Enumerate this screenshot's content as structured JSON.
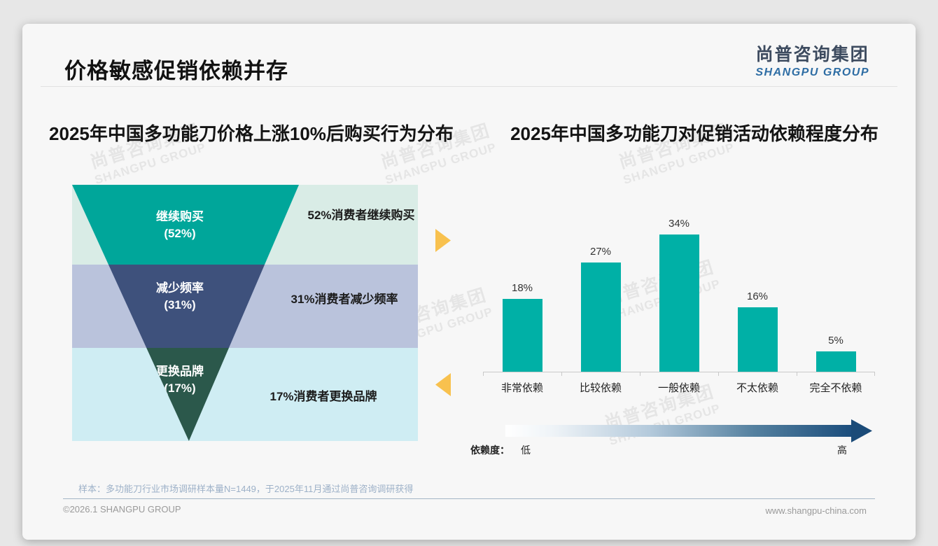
{
  "page": {
    "main_title": "价格敏感促销依赖并存",
    "logo_cn": "尚普咨询集团",
    "logo_en": "SHANGPU GROUP",
    "watermark_cn": "尚普咨询集团",
    "watermark_en": "SHANGPU GROUP",
    "footnote": "样本：多功能刀行业市场调研样本量N=1449，于2025年11月通过尚普咨询调研获得",
    "footer_left": "©2026.1 SHANGPU GROUP",
    "footer_right": "www.shangpu-china.com"
  },
  "colors": {
    "funnel_segment_1": "#00A69A",
    "funnel_segment_2": "#3E517C",
    "funnel_segment_3": "#2B584B",
    "funnel_note_bg_1": "#D9ECE6",
    "funnel_note_bg_2": "#BAC3DC",
    "funnel_note_bg_3": "#CFEDF3",
    "bar_fill": "#00B0A6",
    "side_arrow": "#F8C14E",
    "scale_gradient_start": "#FFFFFF",
    "scale_gradient_end": "#1C4E7D",
    "logo_blue": "#2E6DA4"
  },
  "chart_data": [
    {
      "type": "funnel",
      "title": "2025年中国多功能刀价格上涨10%后购买行为分布",
      "categories": [
        "继续购买",
        "减少频率",
        "更换品牌"
      ],
      "values": [
        52,
        31,
        17
      ],
      "value_labels": [
        "(52%)",
        "(31%)",
        "(17%)"
      ],
      "annotations": [
        "52%消费者继续购买",
        "31%消费者减少频率",
        "17%消费者更换品牌"
      ],
      "legend": false
    },
    {
      "type": "bar",
      "title": "2025年中国多功能刀对促销活动依赖程度分布",
      "categories": [
        "非常依赖",
        "比较依赖",
        "一般依赖",
        "不太依赖",
        "完全不依赖"
      ],
      "values": [
        18,
        27,
        34,
        16,
        5
      ],
      "value_labels": [
        "18%",
        "27%",
        "34%",
        "16%",
        "5%"
      ],
      "ylim": [
        0,
        38
      ],
      "grid": false,
      "legend": false,
      "scale_bar": {
        "label": "依赖度：",
        "low": "低",
        "high": "高"
      }
    }
  ]
}
